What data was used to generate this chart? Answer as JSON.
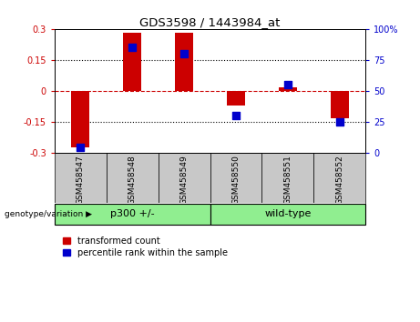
{
  "title": "GDS3598 / 1443984_at",
  "samples": [
    "GSM458547",
    "GSM458548",
    "GSM458549",
    "GSM458550",
    "GSM458551",
    "GSM458552"
  ],
  "red_values": [
    -0.27,
    0.28,
    0.28,
    -0.07,
    0.02,
    -0.13
  ],
  "blue_values": [
    5,
    85,
    80,
    30,
    55,
    25
  ],
  "ylim_left": [
    -0.3,
    0.3
  ],
  "ylim_right": [
    0,
    100
  ],
  "yticks_left": [
    -0.3,
    -0.15,
    0,
    0.15,
    0.3
  ],
  "yticks_right": [
    0,
    25,
    50,
    75,
    100
  ],
  "groups": [
    {
      "label": "p300 +/-",
      "span": [
        0,
        3
      ],
      "color": "#90EE90"
    },
    {
      "label": "wild-type",
      "span": [
        3,
        6
      ],
      "color": "#90EE90"
    }
  ],
  "group_label": "genotype/variation",
  "legend_red": "transformed count",
  "legend_blue": "percentile rank within the sample",
  "bar_width": 0.35,
  "blue_square_size": 40,
  "red_color": "#CC0000",
  "blue_color": "#0000CC",
  "bg_color": "#FFFFFF",
  "tick_bg": "#C8C8C8",
  "black_dot": "#000000",
  "red_dash": "#CC0000"
}
